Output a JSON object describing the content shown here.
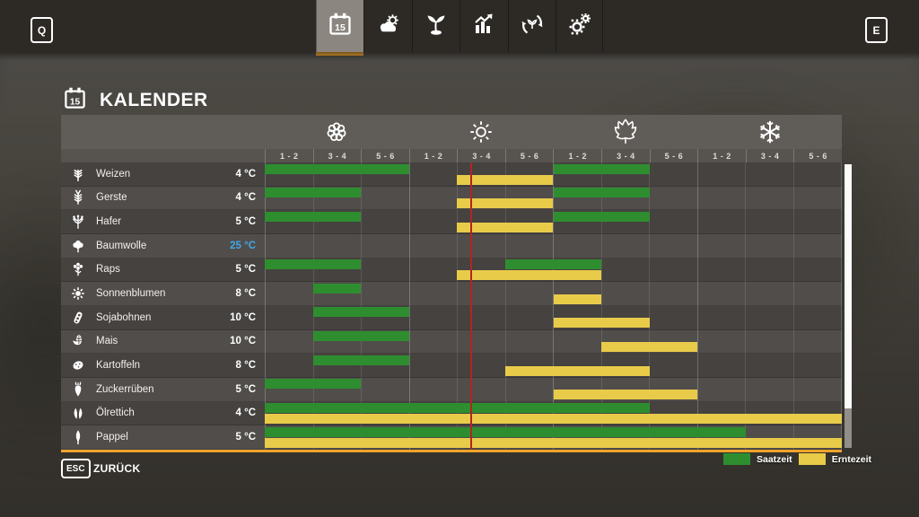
{
  "topbar": {
    "left_key": "Q",
    "right_key": "E",
    "tabs": [
      {
        "id": "calendar",
        "icon": "calendar-icon",
        "active": true
      },
      {
        "id": "weather",
        "icon": "weather-icon",
        "active": false
      },
      {
        "id": "crops",
        "icon": "sprout-icon",
        "active": false
      },
      {
        "id": "economy",
        "icon": "economy-icon",
        "active": false
      },
      {
        "id": "rotation",
        "icon": "rotation-icon",
        "active": false
      },
      {
        "id": "settings",
        "icon": "settings-icon",
        "active": false
      }
    ]
  },
  "page": {
    "title": "KALENDER",
    "title_icon": "calendar-icon"
  },
  "footer": {
    "key": "ESC",
    "label": "ZURÜCK"
  },
  "colors": {
    "accent_orange": "#efa32b",
    "sow_green": "#2e8e2f",
    "harvest_yellow": "#e9cb4a",
    "current_day_line": "#b32421",
    "cotton_temp_blue": "#3fa9e8"
  },
  "chart_data": {
    "type": "table",
    "title": "KALENDER",
    "description": "Crop calendar gantt: 4 seasons x 3 bimonthly columns (12 columns total); green = sowing time, yellow = harvest time",
    "seasons": [
      {
        "name": "spring",
        "icon": "blossom-icon"
      },
      {
        "name": "summer",
        "icon": "sun-icon"
      },
      {
        "name": "autumn",
        "icon": "maple-leaf-icon"
      },
      {
        "name": "winter",
        "icon": "snowflake-icon"
      }
    ],
    "period_labels": [
      "1 - 2",
      "3 - 4",
      "5 - 6"
    ],
    "columns_total": 12,
    "current_time_column": 4.28,
    "rows": [
      {
        "crop": "Weizen",
        "temp": "4 °C",
        "temp_color": "#ffffff",
        "icon": "wheat-icon",
        "sow": [
          [
            1,
            3
          ],
          [
            7,
            8
          ]
        ],
        "harvest": [
          [
            5,
            6
          ]
        ]
      },
      {
        "crop": "Gerste",
        "temp": "4 °C",
        "temp_color": "#ffffff",
        "icon": "barley-icon",
        "sow": [
          [
            1,
            2
          ],
          [
            7,
            8
          ]
        ],
        "harvest": [
          [
            5,
            6
          ]
        ]
      },
      {
        "crop": "Hafer",
        "temp": "5 °C",
        "temp_color": "#ffffff",
        "icon": "oat-icon",
        "sow": [
          [
            1,
            2
          ],
          [
            7,
            8
          ]
        ],
        "harvest": [
          [
            5,
            6
          ]
        ]
      },
      {
        "crop": "Baumwolle",
        "temp": "25 °C",
        "temp_color": "#3fa9e8",
        "icon": "cotton-icon",
        "sow": [],
        "harvest": []
      },
      {
        "crop": "Raps",
        "temp": "5 °C",
        "temp_color": "#ffffff",
        "icon": "canola-icon",
        "sow": [
          [
            1,
            2
          ],
          [
            6,
            7
          ]
        ],
        "harvest": [
          [
            5,
            7
          ]
        ]
      },
      {
        "crop": "Sonnenblumen",
        "temp": "8 °C",
        "temp_color": "#ffffff",
        "icon": "sunflower-icon",
        "sow": [
          [
            2,
            2
          ]
        ],
        "harvest": [
          [
            7,
            7
          ]
        ]
      },
      {
        "crop": "Sojabohnen",
        "temp": "10 °C",
        "temp_color": "#ffffff",
        "icon": "soybean-icon",
        "sow": [
          [
            2,
            3
          ]
        ],
        "harvest": [
          [
            7,
            8
          ]
        ]
      },
      {
        "crop": "Mais",
        "temp": "10 °C",
        "temp_color": "#ffffff",
        "icon": "corn-icon",
        "sow": [
          [
            2,
            3
          ]
        ],
        "harvest": [
          [
            8,
            9
          ]
        ]
      },
      {
        "crop": "Kartoffeln",
        "temp": "8 °C",
        "temp_color": "#ffffff",
        "icon": "potato-icon",
        "sow": [
          [
            2,
            3
          ]
        ],
        "harvest": [
          [
            6,
            8
          ]
        ]
      },
      {
        "crop": "Zuckerrüben",
        "temp": "5 °C",
        "temp_color": "#ffffff",
        "icon": "sugarbeet-icon",
        "sow": [
          [
            1,
            2
          ]
        ],
        "harvest": [
          [
            7,
            9
          ]
        ]
      },
      {
        "crop": "Ölrettich",
        "temp": "4 °C",
        "temp_color": "#ffffff",
        "icon": "radish-icon",
        "sow": [
          [
            1,
            8
          ]
        ],
        "harvest": [
          [
            1,
            12
          ]
        ]
      },
      {
        "crop": "Pappel",
        "temp": "5 °C",
        "temp_color": "#ffffff",
        "icon": "poplar-icon",
        "sow": [
          [
            1,
            10
          ]
        ],
        "harvest": [
          [
            1,
            12
          ]
        ]
      }
    ],
    "legend": [
      {
        "label": "Saatzeit",
        "color": "#2e8e2f"
      },
      {
        "label": "Erntezeit",
        "color": "#e9cb4a"
      }
    ]
  }
}
